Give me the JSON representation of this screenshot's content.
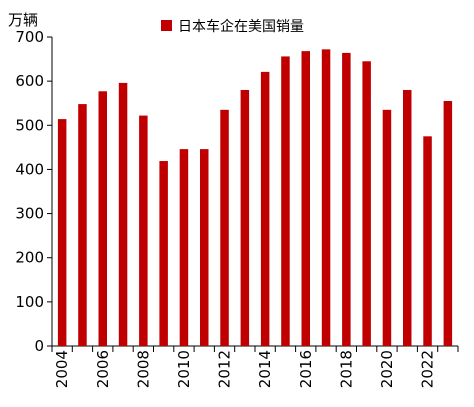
{
  "chart_data": {
    "type": "bar",
    "title": "",
    "xlabel": "",
    "ylabel": "万辆",
    "ylim": [
      0,
      700
    ],
    "yticks": [
      0,
      100,
      200,
      300,
      400,
      500,
      600,
      700
    ],
    "grid": false,
    "legend_position": "top",
    "categories": [
      "2004",
      "2005",
      "2006",
      "2007",
      "2008",
      "2009",
      "2010",
      "2011",
      "2012",
      "2013",
      "2014",
      "2015",
      "2016",
      "2017",
      "2018",
      "2019",
      "2020",
      "2021",
      "2022",
      "2023"
    ],
    "tick_labels": [
      "2004",
      "2006",
      "2008",
      "2010",
      "2012",
      "2014",
      "2016",
      "2018",
      "2020",
      "2022"
    ],
    "series": [
      {
        "name": "日本车企在美国销量",
        "color": "#C00000",
        "values": [
          514,
          548,
          577,
          596,
          522,
          419,
          446,
          446,
          535,
          580,
          621,
          656,
          668,
          672,
          664,
          645,
          535,
          580,
          475,
          555
        ]
      }
    ]
  }
}
